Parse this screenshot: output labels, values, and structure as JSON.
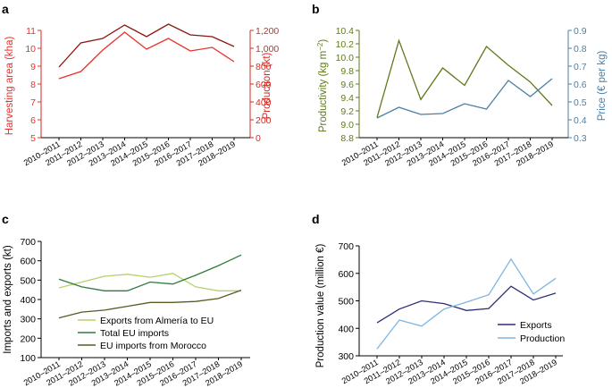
{
  "colors": {
    "red_light": "#e8322b",
    "red_dark": "#8b1510",
    "axis_red": "#d62a22",
    "olive": "#5f7a1c",
    "steel": "#4a7fa7",
    "lime": "#b3d36a",
    "green_dark": "#2f7a3d",
    "olive_dark": "#5a5a22",
    "navy": "#2e2d78",
    "sky": "#7eb6e0",
    "axis": "#000000"
  },
  "chart_data": [
    {
      "id": "a",
      "panel_label": "a",
      "type": "line",
      "x": [
        "2010–2011",
        "2011–2012",
        "2012–2013",
        "2013–2014",
        "2014–2015",
        "2015–2016",
        "2016–2017",
        "2017–2018",
        "2018–2019"
      ],
      "left_axis": {
        "label": "Harvesting area (kha)",
        "ylim": [
          5,
          11
        ],
        "ticks": [
          "5",
          "6",
          "7",
          "8",
          "9",
          "10",
          "11"
        ]
      },
      "right_axis": {
        "label": "Production (kt)",
        "ylim": [
          0,
          1200
        ],
        "ticks": [
          "0",
          "200",
          "400",
          "600",
          "800",
          "1,000",
          "1,200"
        ]
      },
      "series": [
        {
          "name": "Harvesting area",
          "axis": "left",
          "values": [
            8.3,
            8.7,
            9.9,
            10.9,
            9.95,
            10.55,
            9.85,
            10.05,
            9.25
          ]
        },
        {
          "name": "Production",
          "axis": "right",
          "values": [
            790,
            1060,
            1110,
            1260,
            1130,
            1270,
            1150,
            1130,
            1020
          ]
        }
      ]
    },
    {
      "id": "b",
      "panel_label": "b",
      "type": "line",
      "x": [
        "2010–2011",
        "2011–2012",
        "2012–2013",
        "2013–2014",
        "2014–2015",
        "2015–2016",
        "2016–2017",
        "2017–2018",
        "2018–2019"
      ],
      "left_axis": {
        "label": "Productivity (kg m",
        "label_sup": "−2",
        "label_end": ")",
        "ylim": [
          8.8,
          10.4
        ],
        "ticks": [
          "8.8",
          "9.0",
          "9.2",
          "9.4",
          "9.6",
          "9.8",
          "10.0",
          "10.2",
          "10.4"
        ]
      },
      "right_axis": {
        "label": "Price (€ per kg)",
        "ylim": [
          0.3,
          0.9
        ],
        "ticks": [
          "0.3",
          "0.4",
          "0.5",
          "0.6",
          "0.7",
          "0.8",
          "0.9"
        ]
      },
      "series": [
        {
          "name": "Productivity",
          "axis": "left",
          "values": [
            9.1,
            10.25,
            9.37,
            9.84,
            9.58,
            10.16,
            9.88,
            9.63,
            9.28
          ]
        },
        {
          "name": "Price",
          "axis": "right",
          "values": [
            0.41,
            0.47,
            0.43,
            0.435,
            0.49,
            0.46,
            0.62,
            0.53,
            0.63
          ]
        }
      ]
    },
    {
      "id": "c",
      "panel_label": "c",
      "type": "line",
      "x": [
        "2010–2011",
        "2011–2012",
        "2012–2013",
        "2013–2014",
        "2014–2015",
        "2015–2016",
        "2016–2017",
        "2017–2018",
        "2018–2019"
      ],
      "ylabel": "Imports and exports (kt)",
      "ylim": [
        100,
        700
      ],
      "ticks": [
        "100",
        "200",
        "300",
        "400",
        "500",
        "600",
        "700"
      ],
      "series": [
        {
          "name": "Exports from Almería to EU",
          "values": [
            460,
            490,
            520,
            530,
            515,
            535,
            465,
            445,
            445
          ]
        },
        {
          "name": "Total EU imports",
          "values": [
            505,
            465,
            445,
            445,
            490,
            480,
            525,
            575,
            630
          ]
        },
        {
          "name": "EU imports from Morocco",
          "values": [
            305,
            335,
            345,
            365,
            385,
            385,
            390,
            405,
            448
          ]
        }
      ],
      "legend_position": "center"
    },
    {
      "id": "d",
      "panel_label": "d",
      "type": "line",
      "x": [
        "2010–2011",
        "2011–2012",
        "2012–2013",
        "2013–2014",
        "2014–2015",
        "2015–2016",
        "2016–2017",
        "2017–2018",
        "2018–2019"
      ],
      "ylabel": "Production value (million €)",
      "ylim": [
        300,
        700
      ],
      "ticks": [
        "300",
        "400",
        "500",
        "600",
        "700"
      ],
      "series": [
        {
          "name": "Exports",
          "values": [
            420,
            470,
            500,
            490,
            465,
            472,
            553,
            503,
            528
          ]
        },
        {
          "name": "Production",
          "values": [
            325,
            430,
            408,
            470,
            495,
            522,
            652,
            525,
            582
          ]
        }
      ],
      "legend_position": "bottom-right"
    }
  ]
}
